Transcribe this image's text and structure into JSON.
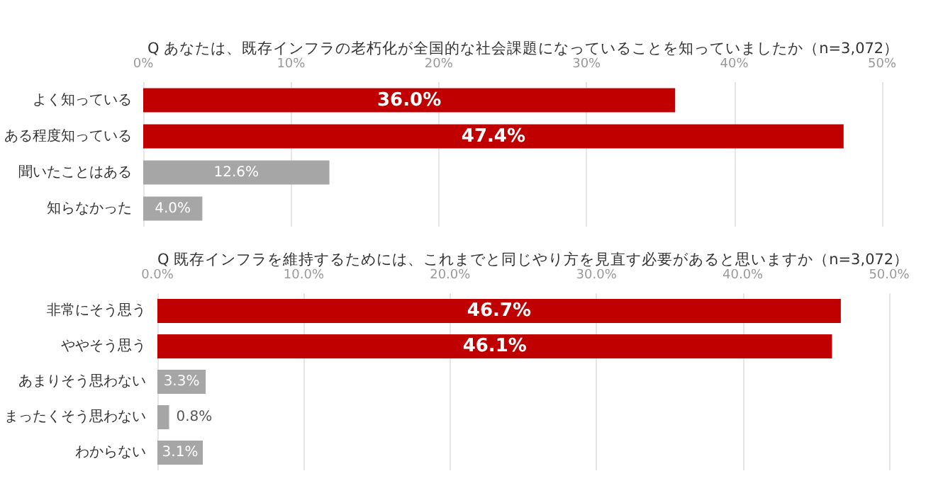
{
  "chart_data": [
    {
      "type": "bar",
      "orientation": "horizontal",
      "title": "Q あなたは、既存インフラの老朽化が全国的な社会課題になっていることを知っていましたか（n=3,072）",
      "categories": [
        "よく知っている",
        "ある程度知っている",
        "聞いたことはある",
        "知らなかった"
      ],
      "values": [
        36.0,
        47.4,
        12.6,
        4.0
      ],
      "colors": [
        "#c00000",
        "#c00000",
        "#a6a6a6",
        "#a6a6a6"
      ],
      "value_labels": [
        "36.0%",
        "47.4%",
        "12.6%",
        "4.0%"
      ],
      "xlim": [
        0,
        50
      ],
      "xticks": [
        {
          "value": 0,
          "label": "0%"
        },
        {
          "value": 10,
          "label": "10%"
        },
        {
          "value": 20,
          "label": "20%"
        },
        {
          "value": 30,
          "label": "30%"
        },
        {
          "value": 40,
          "label": "40%"
        },
        {
          "value": 50,
          "label": "50%"
        }
      ],
      "grid": "x"
    },
    {
      "type": "bar",
      "orientation": "horizontal",
      "title": "Q 既存インフラを維持するためには、これまでと同じやり方を見直す必要があると思いますか（n=3,072）",
      "categories": [
        "非常にそう思う",
        "ややそう思う",
        "あまりそう思わない",
        "まったくそう思わない",
        "わからない"
      ],
      "values": [
        46.7,
        46.1,
        3.3,
        0.8,
        3.1
      ],
      "colors": [
        "#c00000",
        "#c00000",
        "#a6a6a6",
        "#a6a6a6",
        "#a6a6a6"
      ],
      "value_labels": [
        "46.7%",
        "46.1%",
        "3.3%",
        "0.8%",
        "3.1%"
      ],
      "xlim": [
        0,
        50
      ],
      "xticks": [
        {
          "value": 0,
          "label": "0.0%"
        },
        {
          "value": 10,
          "label": "10.0%"
        },
        {
          "value": 20,
          "label": "20.0%"
        },
        {
          "value": 30,
          "label": "30.0%"
        },
        {
          "value": 40,
          "label": "40.0%"
        },
        {
          "value": 50,
          "label": "50.0%"
        }
      ],
      "grid": "x"
    }
  ]
}
